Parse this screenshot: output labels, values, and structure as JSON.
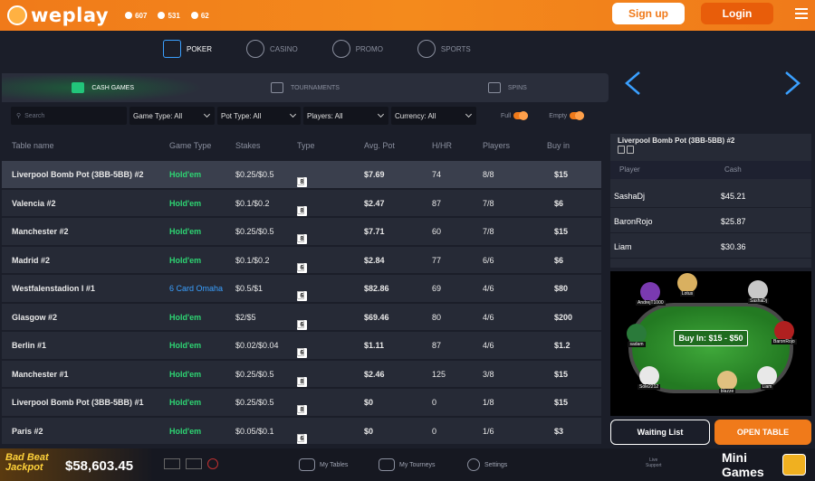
{
  "brand": {
    "name": "weplay"
  },
  "stats": [
    {
      "icon": "users-icon",
      "value": "607"
    },
    {
      "icon": "chips-icon",
      "value": "531"
    },
    {
      "icon": "trophy-icon",
      "value": "62"
    }
  ],
  "auth": {
    "signup_label": "Sign up",
    "login_label": "Login"
  },
  "nav": [
    {
      "label": "POKER",
      "icon": "cards-icon",
      "active": true
    },
    {
      "label": "CASINO",
      "icon": "casino-chip-icon",
      "active": false
    },
    {
      "label": "PROMO",
      "icon": "gift-icon",
      "active": false
    },
    {
      "label": "SPORTS",
      "icon": "ball-icon",
      "active": false
    }
  ],
  "subnav": [
    {
      "label": "CASH GAMES",
      "active": true
    },
    {
      "label": "TOURNAMENTS",
      "active": false
    },
    {
      "label": "SPINS",
      "active": false
    }
  ],
  "filters": {
    "search_placeholder": "Search",
    "game_type": "Game Type: All",
    "pot_type": "Pot Type: All",
    "players": "Players: All",
    "currency": "Currency: All",
    "full_label": "Full",
    "empty_label": "Empty"
  },
  "columns": [
    "Table name",
    "Game Type",
    "Stakes",
    "Type",
    "Avg. Pot",
    "H/HR",
    "Players",
    "Buy in"
  ],
  "rows": [
    {
      "name": "Liverpool Bomb Pot (3BB-5BB) #2",
      "game": "Hold'em",
      "stakes": "$0.25/$0.5",
      "seats": "8",
      "pot": "$7.69",
      "hhr": "74",
      "players": "8/8",
      "buyin": "$15"
    },
    {
      "name": "Valencia #2",
      "game": "Hold'em",
      "stakes": "$0.1/$0.2",
      "seats": "8",
      "pot": "$2.47",
      "hhr": "87",
      "players": "7/8",
      "buyin": "$6"
    },
    {
      "name": "Manchester #2",
      "game": "Hold'em",
      "stakes": "$0.25/$0.5",
      "seats": "8",
      "pot": "$7.71",
      "hhr": "60",
      "players": "7/8",
      "buyin": "$15"
    },
    {
      "name": "Madrid #2",
      "game": "Hold'em",
      "stakes": "$0.1/$0.2",
      "seats": "6",
      "pot": "$2.84",
      "hhr": "77",
      "players": "6/6",
      "buyin": "$6"
    },
    {
      "name": "Westfalenstadion I #1",
      "game": "6 Card Omaha",
      "stakes": "$0.5/$1",
      "seats": "6",
      "pot": "$82.86",
      "hhr": "69",
      "players": "4/6",
      "buyin": "$80"
    },
    {
      "name": "Glasgow #2",
      "game": "Hold'em",
      "stakes": "$2/$5",
      "seats": "6",
      "pot": "$69.46",
      "hhr": "80",
      "players": "4/6",
      "buyin": "$200"
    },
    {
      "name": "Berlin #1",
      "game": "Hold'em",
      "stakes": "$0.02/$0.04",
      "seats": "6",
      "pot": "$1.11",
      "hhr": "87",
      "players": "4/6",
      "buyin": "$1.2"
    },
    {
      "name": "Manchester #1",
      "game": "Hold'em",
      "stakes": "$0.25/$0.5",
      "seats": "8",
      "pot": "$2.46",
      "hhr": "125",
      "players": "3/8",
      "buyin": "$15"
    },
    {
      "name": "Liverpool Bomb Pot (3BB-5BB) #1",
      "game": "Hold'em",
      "stakes": "$0.25/$0.5",
      "seats": "8",
      "pot": "$0",
      "hhr": "0",
      "players": "1/8",
      "buyin": "$15"
    },
    {
      "name": "Paris #2",
      "game": "Hold'em",
      "stakes": "$0.05/$0.1",
      "seats": "6",
      "pot": "$0",
      "hhr": "0",
      "players": "1/6",
      "buyin": "$3"
    }
  ],
  "side": {
    "title": "Liverpool Bomb Pot (3BB-5BB) #2",
    "col_player": "Player",
    "col_cash": "Cash",
    "players": [
      {
        "name": "SashaDj",
        "cash": "$45.21"
      },
      {
        "name": "BaronRojo",
        "cash": "$25.87"
      },
      {
        "name": "Liam",
        "cash": "$30.36"
      }
    ],
    "buyin_label": "Buy In: $15 - $50",
    "seats": [
      "Lotus",
      "SashaDj",
      "BaronRojo",
      "Liam",
      "blazze",
      "Sole2212",
      "sadam",
      "AndrejT1000"
    ],
    "waiting_label": "Waiting List",
    "open_label": "OPEN TABLE"
  },
  "footer": {
    "jackpot_label_1": "Bad Beat",
    "jackpot_label_2": "Jackpot",
    "jackpot_amount": "$58,603.45",
    "my_tables": "My Tables",
    "my_tourneys": "My Tourneys",
    "settings": "Settings",
    "live_support_1": "Live",
    "live_support_2": "Support",
    "mini_games_1": "Mini",
    "mini_games_2": "Games"
  },
  "colors": {
    "accent": "#f07a1a",
    "holdem": "#2ed573",
    "omaha": "#3aa0ff",
    "bg": "#1b1e29"
  }
}
